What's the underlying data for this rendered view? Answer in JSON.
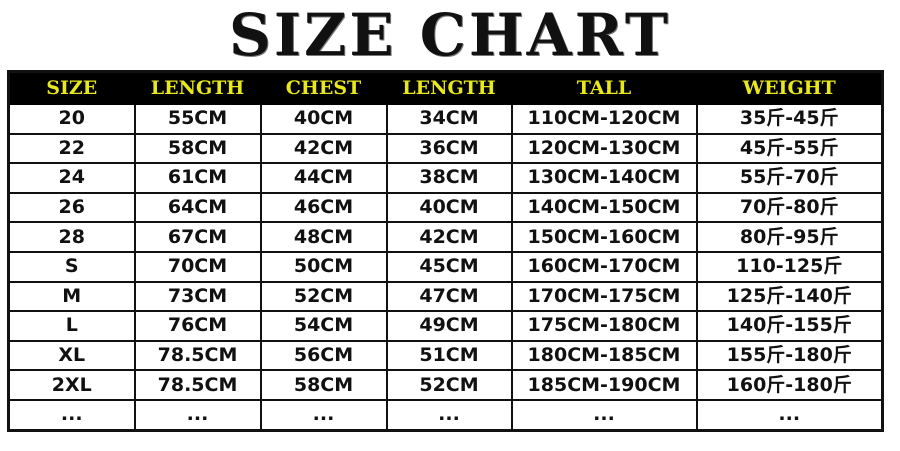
{
  "title": "SIZE CHART",
  "colors": {
    "header_bg": "#000000",
    "header_text": "#e8e81a"
  },
  "headers": [
    "SIZE",
    "LENGTH",
    "CHEST",
    "LENGTH",
    "TALL",
    "WEIGHT"
  ],
  "rows": [
    [
      "20",
      "55CM",
      "40CM",
      "34CM",
      "110CM-120CM",
      "35斤-45斤"
    ],
    [
      "22",
      "58CM",
      "42CM",
      "36CM",
      "120CM-130CM",
      "45斤-55斤"
    ],
    [
      "24",
      "61CM",
      "44CM",
      "38CM",
      "130CM-140CM",
      "55斤-70斤"
    ],
    [
      "26",
      "64CM",
      "46CM",
      "40CM",
      "140CM-150CM",
      "70斤-80斤"
    ],
    [
      "28",
      "67CM",
      "48CM",
      "42CM",
      "150CM-160CM",
      "80斤-95斤"
    ],
    [
      "S",
      "70CM",
      "50CM",
      "45CM",
      "160CM-170CM",
      "110-125斤"
    ],
    [
      "M",
      "73CM",
      "52CM",
      "47CM",
      "170CM-175CM",
      "125斤-140斤"
    ],
    [
      "L",
      "76CM",
      "54CM",
      "49CM",
      "175CM-180CM",
      "140斤-155斤"
    ],
    [
      "XL",
      "78.5CM",
      "56CM",
      "51CM",
      "180CM-185CM",
      "155斤-180斤"
    ],
    [
      "2XL",
      "78.5CM",
      "58CM",
      "52CM",
      "185CM-190CM",
      "160斤-180斤"
    ],
    [
      "...",
      "...",
      "...",
      "...",
      "...",
      "..."
    ]
  ]
}
